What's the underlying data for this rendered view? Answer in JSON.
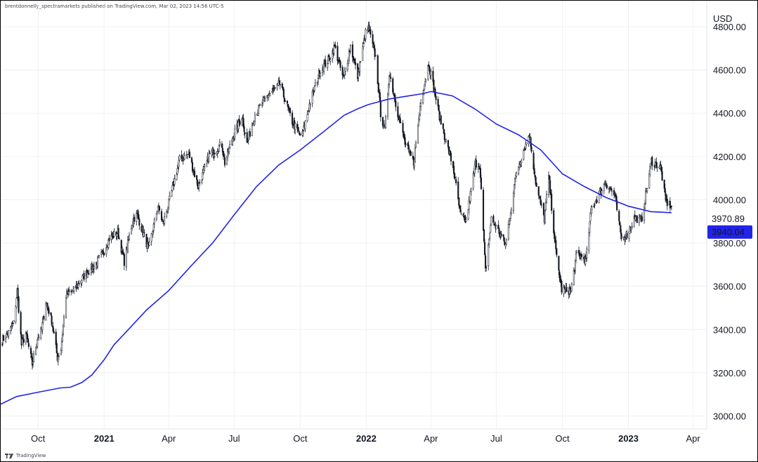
{
  "header": {
    "caption": "brentdonnelly_spectramarkets published on TradingView.com, Mar 02, 2023 14:56 UTC-5"
  },
  "footer": {
    "brand": "TradingView",
    "logo_icon": "tradingview-logo-icon"
  },
  "chart_data": {
    "type": "candlestick",
    "title": "",
    "currency_label": "USD",
    "x_range": [
      "2020-08-10",
      "2023-04-20"
    ],
    "ylim": [
      2940,
      4920
    ],
    "yticks": [
      3000,
      3200,
      3400,
      3600,
      3800,
      4000,
      4200,
      4400,
      4600,
      4800
    ],
    "ytick_labels": [
      "3000.00",
      "3200.00",
      "3400.00",
      "3600.00",
      "3800.00",
      "4000.00",
      "4200.00",
      "4400.00",
      "4600.00",
      "4800.00"
    ],
    "xticks": [
      {
        "date": "2020-10-01",
        "label": "Oct",
        "bold": false
      },
      {
        "date": "2021-01-01",
        "label": "2021",
        "bold": true
      },
      {
        "date": "2021-04-01",
        "label": "Apr",
        "bold": false
      },
      {
        "date": "2021-07-01",
        "label": "Jul",
        "bold": false
      },
      {
        "date": "2021-10-01",
        "label": "Oct",
        "bold": false
      },
      {
        "date": "2022-01-01",
        "label": "2022",
        "bold": true
      },
      {
        "date": "2022-04-01",
        "label": "Apr",
        "bold": false
      },
      {
        "date": "2022-07-01",
        "label": "Jul",
        "bold": false
      },
      {
        "date": "2022-10-01",
        "label": "Oct",
        "bold": false
      },
      {
        "date": "2023-01-01",
        "label": "2023",
        "bold": true
      },
      {
        "date": "2023-04-01",
        "label": "Apr",
        "bold": false
      }
    ],
    "grid": true,
    "price_series": {
      "name": "",
      "color": "#131722",
      "last_value": "3970.89",
      "points": [
        [
          "2020-08-12",
          3350
        ],
        [
          "2020-08-20",
          3380
        ],
        [
          "2020-08-28",
          3430
        ],
        [
          "2020-09-02",
          3580
        ],
        [
          "2020-09-08",
          3330
        ],
        [
          "2020-09-14",
          3380
        ],
        [
          "2020-09-23",
          3240
        ],
        [
          "2020-09-30",
          3360
        ],
        [
          "2020-10-06",
          3400
        ],
        [
          "2020-10-12",
          3530
        ],
        [
          "2020-10-20",
          3440
        ],
        [
          "2020-10-28",
          3270
        ],
        [
          "2020-11-02",
          3310
        ],
        [
          "2020-11-09",
          3560
        ],
        [
          "2020-11-20",
          3580
        ],
        [
          "2020-11-30",
          3630
        ],
        [
          "2020-12-10",
          3670
        ],
        [
          "2020-12-20",
          3700
        ],
        [
          "2020-12-31",
          3756
        ],
        [
          "2021-01-08",
          3820
        ],
        [
          "2021-01-20",
          3850
        ],
        [
          "2021-01-29",
          3714
        ],
        [
          "2021-02-10",
          3910
        ],
        [
          "2021-02-16",
          3930
        ],
        [
          "2021-03-04",
          3770
        ],
        [
          "2021-03-17",
          3970
        ],
        [
          "2021-03-24",
          3890
        ],
        [
          "2021-03-31",
          3970
        ],
        [
          "2021-04-16",
          4185
        ],
        [
          "2021-04-29",
          4210
        ],
        [
          "2021-05-12",
          4060
        ],
        [
          "2021-05-28",
          4210
        ],
        [
          "2021-06-14",
          4255
        ],
        [
          "2021-06-18",
          4170
        ],
        [
          "2021-06-30",
          4300
        ],
        [
          "2021-07-12",
          4385
        ],
        [
          "2021-07-19",
          4260
        ],
        [
          "2021-07-30",
          4395
        ],
        [
          "2021-08-16",
          4480
        ],
        [
          "2021-08-31",
          4520
        ],
        [
          "2021-09-02",
          4540
        ],
        [
          "2021-09-20",
          4360
        ],
        [
          "2021-09-30",
          4300
        ],
        [
          "2021-10-04",
          4300
        ],
        [
          "2021-10-14",
          4440
        ],
        [
          "2021-10-29",
          4600
        ],
        [
          "2021-11-10",
          4650
        ],
        [
          "2021-11-18",
          4705
        ],
        [
          "2021-11-30",
          4560
        ],
        [
          "2021-12-10",
          4710
        ],
        [
          "2021-12-20",
          4570
        ],
        [
          "2021-12-31",
          4770
        ],
        [
          "2022-01-04",
          4793
        ],
        [
          "2022-01-14",
          4660
        ],
        [
          "2022-01-21",
          4400
        ],
        [
          "2022-01-27",
          4320
        ],
        [
          "2022-02-02",
          4590
        ],
        [
          "2022-02-14",
          4400
        ],
        [
          "2022-02-24",
          4260
        ],
        [
          "2022-03-08",
          4170
        ],
        [
          "2022-03-18",
          4460
        ],
        [
          "2022-03-29",
          4630
        ],
        [
          "2022-04-12",
          4400
        ],
        [
          "2022-04-22",
          4270
        ],
        [
          "2022-05-02",
          4150
        ],
        [
          "2022-05-12",
          3930
        ],
        [
          "2022-05-20",
          3900
        ],
        [
          "2022-06-02",
          4170
        ],
        [
          "2022-06-08",
          4160
        ],
        [
          "2022-06-16",
          3670
        ],
        [
          "2022-06-24",
          3910
        ],
        [
          "2022-07-06",
          3845
        ],
        [
          "2022-07-14",
          3790
        ],
        [
          "2022-07-29",
          4130
        ],
        [
          "2022-08-16",
          4305
        ],
        [
          "2022-08-26",
          4057
        ],
        [
          "2022-09-06",
          3910
        ],
        [
          "2022-09-12",
          4110
        ],
        [
          "2022-09-22",
          3757
        ],
        [
          "2022-09-30",
          3585
        ],
        [
          "2022-10-13",
          3580
        ],
        [
          "2022-10-21",
          3750
        ],
        [
          "2022-11-03",
          3720
        ],
        [
          "2022-11-10",
          3956
        ],
        [
          "2022-11-30",
          4080
        ],
        [
          "2022-12-13",
          4020
        ],
        [
          "2022-12-22",
          3822
        ],
        [
          "2022-12-30",
          3840
        ],
        [
          "2023-01-10",
          3919
        ],
        [
          "2023-01-19",
          3900
        ],
        [
          "2023-02-02",
          4180
        ],
        [
          "2023-02-15",
          4148
        ],
        [
          "2023-02-22",
          3991
        ],
        [
          "2023-03-02",
          3970
        ]
      ]
    },
    "ma_series": {
      "name": "",
      "color": "#2224e8",
      "last_value": "3940.04",
      "points": [
        [
          "2020-08-10",
          3055
        ],
        [
          "2020-09-01",
          3090
        ],
        [
          "2020-10-01",
          3110
        ],
        [
          "2020-11-01",
          3130
        ],
        [
          "2020-11-15",
          3133
        ],
        [
          "2020-12-01",
          3155
        ],
        [
          "2020-12-15",
          3190
        ],
        [
          "2021-01-01",
          3260
        ],
        [
          "2021-01-15",
          3330
        ],
        [
          "2021-02-01",
          3390
        ],
        [
          "2021-03-01",
          3490
        ],
        [
          "2021-04-01",
          3580
        ],
        [
          "2021-05-01",
          3690
        ],
        [
          "2021-06-01",
          3800
        ],
        [
          "2021-07-01",
          3930
        ],
        [
          "2021-08-01",
          4060
        ],
        [
          "2021-09-01",
          4160
        ],
        [
          "2021-10-01",
          4230
        ],
        [
          "2021-11-01",
          4310
        ],
        [
          "2021-12-01",
          4390
        ],
        [
          "2021-12-20",
          4420
        ],
        [
          "2022-01-04",
          4440
        ],
        [
          "2022-02-01",
          4465
        ],
        [
          "2022-03-01",
          4480
        ],
        [
          "2022-03-20",
          4490
        ],
        [
          "2022-04-01",
          4500
        ],
        [
          "2022-05-01",
          4480
        ],
        [
          "2022-06-01",
          4420
        ],
        [
          "2022-07-01",
          4350
        ],
        [
          "2022-08-01",
          4300
        ],
        [
          "2022-09-01",
          4230
        ],
        [
          "2022-10-01",
          4120
        ],
        [
          "2022-11-01",
          4060
        ],
        [
          "2022-12-01",
          4010
        ],
        [
          "2023-01-01",
          3970
        ],
        [
          "2023-02-01",
          3945
        ],
        [
          "2023-03-02",
          3940
        ]
      ]
    }
  }
}
